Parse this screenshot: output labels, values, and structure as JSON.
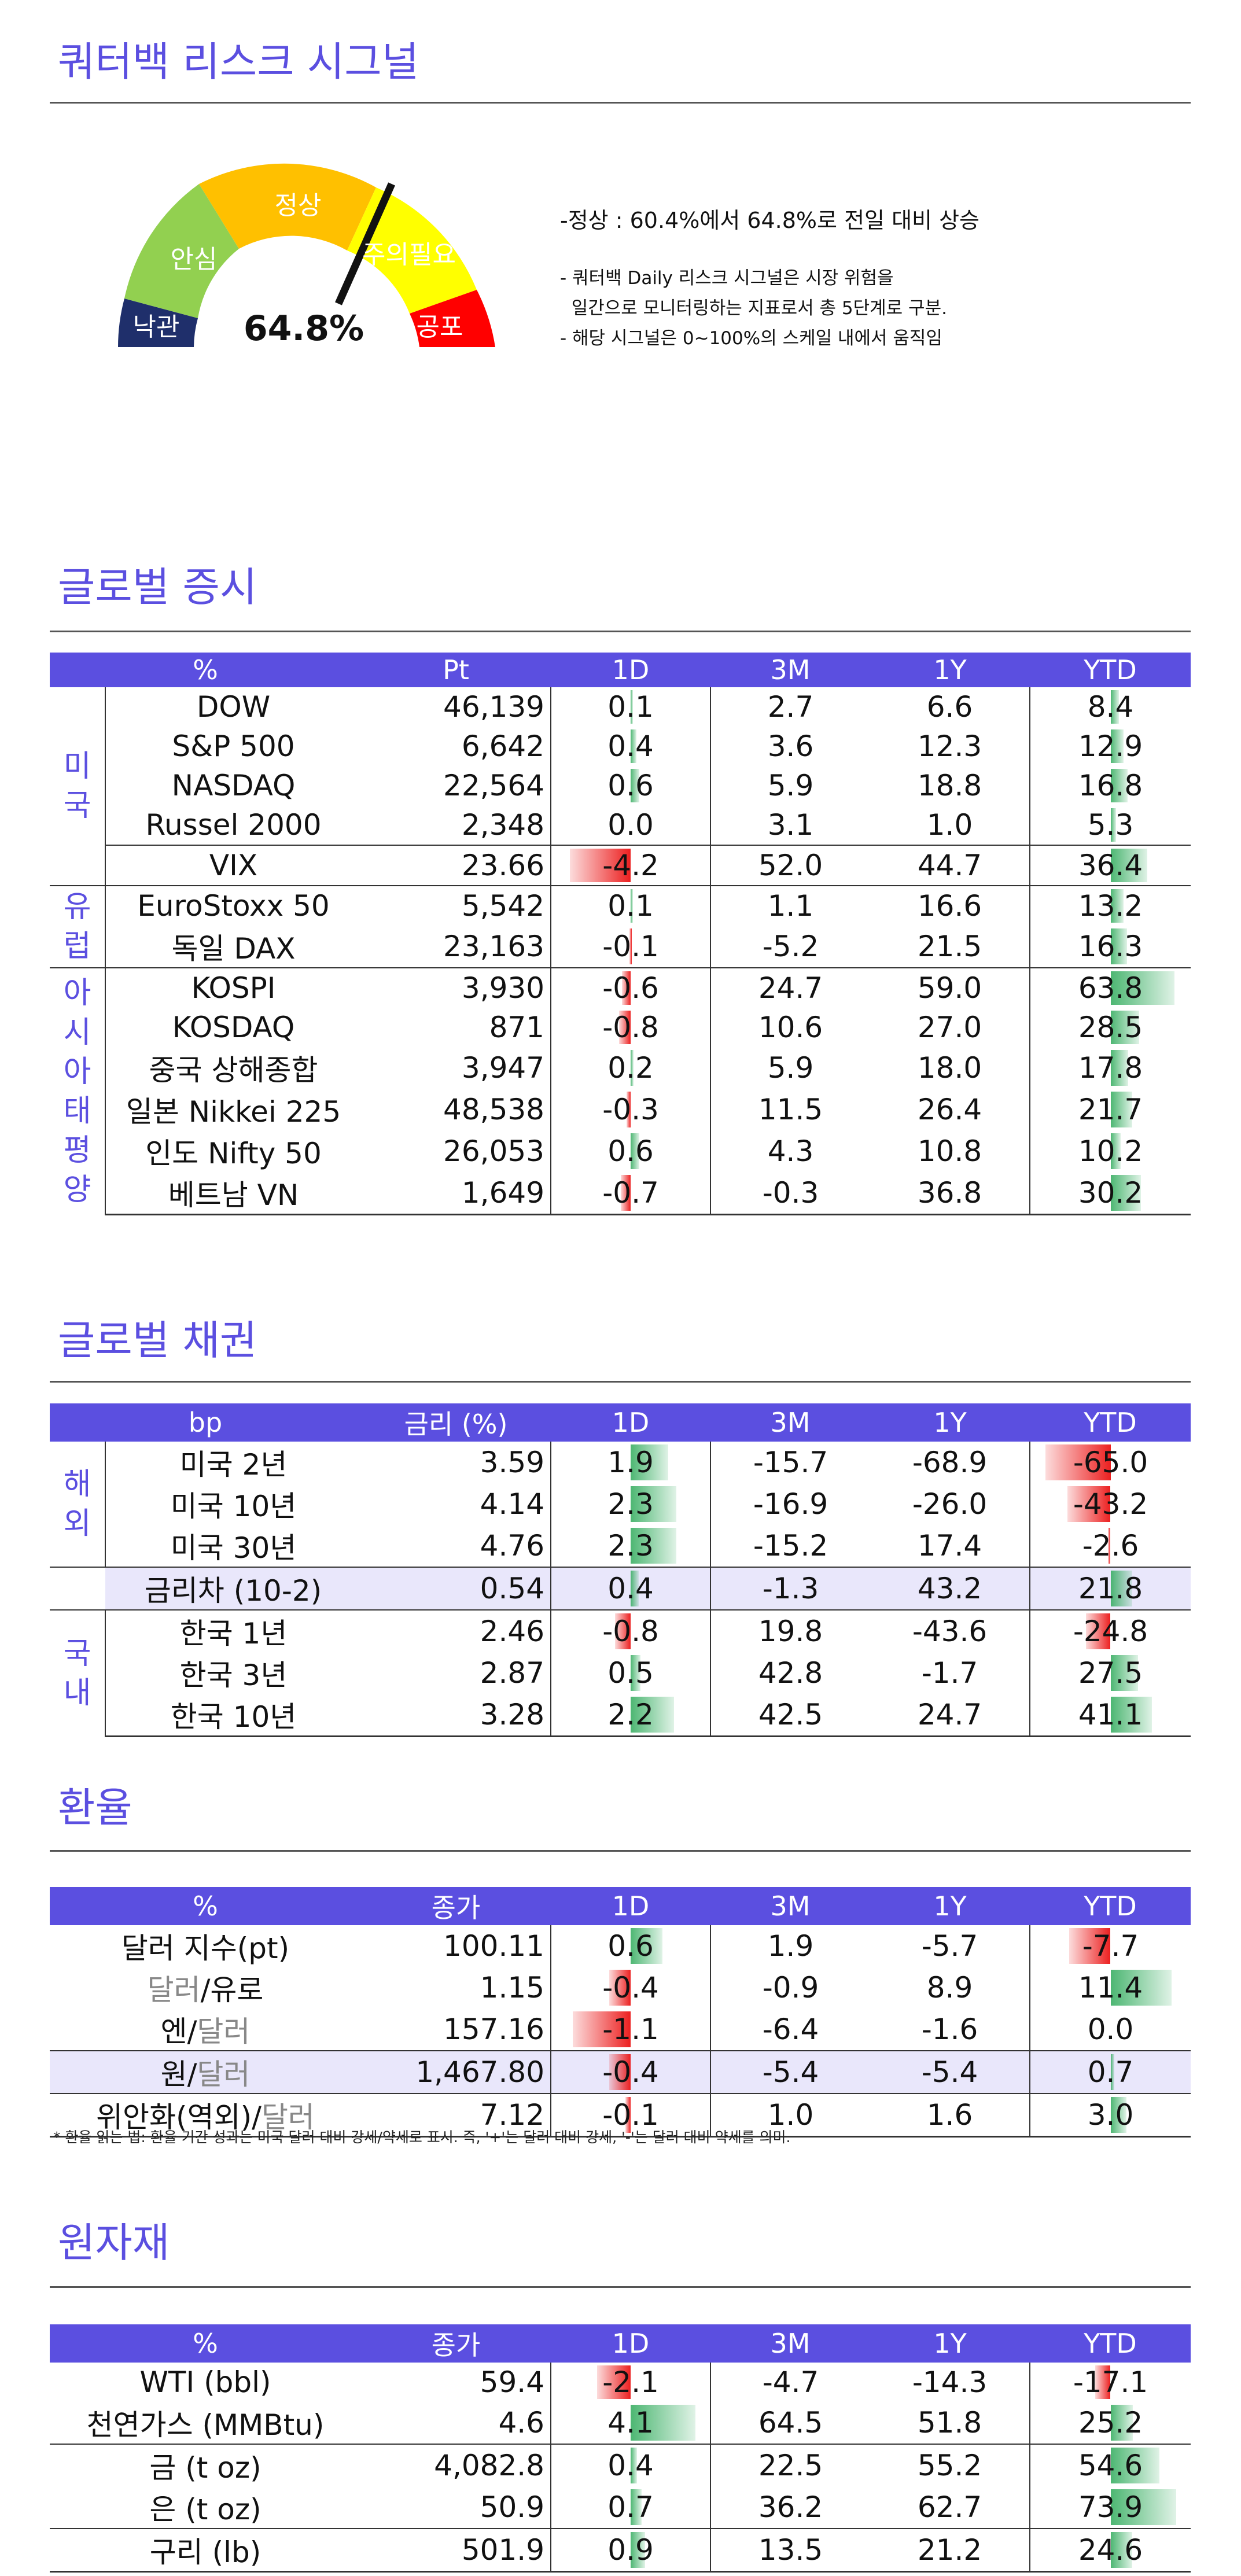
{
  "header": {
    "title": "쿼터백 리스크 시그널"
  },
  "gauge": {
    "labels": [
      "낙관",
      "안심",
      "정상",
      "주의필요",
      "공포"
    ],
    "value": "64.8%",
    "level": 0.648,
    "colors": [
      "#1f2f6b",
      "#92d050",
      "#ffc000",
      "#ffff00",
      "#ff0000"
    ],
    "main_text": "-정상 : 60.4%에서 64.8%로 전일 대비 상승",
    "notes": [
      "- 쿼터백 Daily 리스크 시그널은 시장 위험을",
      "  일간으로 모니터링하는 지표로서 총 5단계로 구분.",
      "- 해당 시그널은 0~100%의 스케일 내에서 움직임"
    ]
  },
  "equity": {
    "title": "글로벌 증시",
    "headers": [
      "%",
      "Pt",
      "1D",
      "3M",
      "1Y",
      "YTD"
    ],
    "groups": {
      "us": "미국",
      "eu": "유럽",
      "asia": "아시아태평양"
    },
    "rows": [
      {
        "name": "DOW",
        "pt": "46,139",
        "d1": "0.1",
        "m3": "2.7",
        "y1": "6.6",
        "ytd": "8.4"
      },
      {
        "name": "S&P 500",
        "pt": "6,642",
        "d1": "0.4",
        "m3": "3.6",
        "y1": "12.3",
        "ytd": "12.9"
      },
      {
        "name": "NASDAQ",
        "pt": "22,564",
        "d1": "0.6",
        "m3": "5.9",
        "y1": "18.8",
        "ytd": "16.8"
      },
      {
        "name": "Russel 2000",
        "pt": "2,348",
        "d1": "0.0",
        "m3": "3.1",
        "y1": "1.0",
        "ytd": "5.3"
      },
      {
        "name": "VIX",
        "pt": "23.66",
        "d1": "-4.2",
        "m3": "52.0",
        "y1": "44.7",
        "ytd": "36.4"
      },
      {
        "name": "EuroStoxx 50",
        "pt": "5,542",
        "d1": "0.1",
        "m3": "1.1",
        "y1": "16.6",
        "ytd": "13.2"
      },
      {
        "name": "독일 DAX",
        "pt": "23,163",
        "d1": "-0.1",
        "m3": "-5.2",
        "y1": "21.5",
        "ytd": "16.3"
      },
      {
        "name": "KOSPI",
        "pt": "3,930",
        "d1": "-0.6",
        "m3": "24.7",
        "y1": "59.0",
        "ytd": "63.8"
      },
      {
        "name": "KOSDAQ",
        "pt": "871",
        "d1": "-0.8",
        "m3": "10.6",
        "y1": "27.0",
        "ytd": "28.5"
      },
      {
        "name": "중국 상해종합",
        "pt": "3,947",
        "d1": "0.2",
        "m3": "5.9",
        "y1": "18.0",
        "ytd": "17.8"
      },
      {
        "name": "일본 Nikkei 225",
        "pt": "48,538",
        "d1": "-0.3",
        "m3": "11.5",
        "y1": "26.4",
        "ytd": "21.7"
      },
      {
        "name": "인도 Nifty 50",
        "pt": "26,053",
        "d1": "0.6",
        "m3": "4.3",
        "y1": "10.8",
        "ytd": "10.2"
      },
      {
        "name": "베트남 VN",
        "pt": "1,649",
        "d1": "-0.7",
        "m3": "-0.3",
        "y1": "36.8",
        "ytd": "30.2"
      }
    ]
  },
  "bonds": {
    "title": "글로벌 채권",
    "headers": [
      "bp",
      "금리 (%)",
      "1D",
      "3M",
      "1Y",
      "YTD"
    ],
    "groups": {
      "abroad": "해외",
      "domestic": "국내"
    },
    "rows": [
      {
        "name": "미국 2년",
        "rate": "3.59",
        "d1": "1.9",
        "m3": "-15.7",
        "y1": "-68.9",
        "ytd": "-65.0"
      },
      {
        "name": "미국 10년",
        "rate": "4.14",
        "d1": "2.3",
        "m3": "-16.9",
        "y1": "-26.0",
        "ytd": "-43.2"
      },
      {
        "name": "미국 30년",
        "rate": "4.76",
        "d1": "2.3",
        "m3": "-15.2",
        "y1": "17.4",
        "ytd": "-2.6"
      },
      {
        "name": "금리차 (10-2)",
        "rate": "0.54",
        "d1": "0.4",
        "m3": "-1.3",
        "y1": "43.2",
        "ytd": "21.8"
      },
      {
        "name": "한국 1년",
        "rate": "2.46",
        "d1": "-0.8",
        "m3": "19.8",
        "y1": "-43.6",
        "ytd": "-24.8"
      },
      {
        "name": "한국 3년",
        "rate": "2.87",
        "d1": "0.5",
        "m3": "42.8",
        "y1": "-1.7",
        "ytd": "27.5"
      },
      {
        "name": "한국 10년",
        "rate": "3.28",
        "d1": "2.2",
        "m3": "42.5",
        "y1": "24.7",
        "ytd": "41.1"
      }
    ]
  },
  "fx": {
    "title": "환율",
    "headers": [
      "%",
      "종가",
      "1D",
      "3M",
      "1Y",
      "YTD"
    ],
    "rows": [
      {
        "a": "달러 지수(pt)",
        "sep": "",
        "b": "",
        "close": "100.11",
        "d1": "0.6",
        "m3": "1.9",
        "y1": "-5.7",
        "ytd": "-7.7"
      },
      {
        "a": "달러",
        "sep": "/",
        "b": "유로",
        "close": "1.15",
        "d1": "-0.4",
        "m3": "-0.9",
        "y1": "8.9",
        "ytd": "11.4"
      },
      {
        "a": "엔",
        "sep": "/",
        "b": "달러",
        "close": "157.16",
        "d1": "-1.1",
        "m3": "-6.4",
        "y1": "-1.6",
        "ytd": "0.0"
      },
      {
        "a": "원",
        "sep": "/",
        "b": "달러",
        "close": "1,467.80",
        "d1": "-0.4",
        "m3": "-5.4",
        "y1": "-5.4",
        "ytd": "0.7"
      },
      {
        "a": "위안화(역외)",
        "sep": "/",
        "b": "달러",
        "close": "7.12",
        "d1": "-0.1",
        "m3": "1.0",
        "y1": "1.6",
        "ytd": "3.0"
      }
    ],
    "note": "* 환율 읽는 법: 환율 기간 성과는 미국 달러 대비 강세/약세로 표시. 즉, '+'는 달러 대비 강세, '-'는 달러 대비 약세를 의미."
  },
  "commodities": {
    "title": "원자재",
    "headers": [
      "%",
      "종가",
      "1D",
      "3M",
      "1Y",
      "YTD"
    ],
    "rows": [
      {
        "name": "WTI (bbl)",
        "close": "59.4",
        "d1": "-2.1",
        "m3": "-4.7",
        "y1": "-14.3",
        "ytd": "-17.1"
      },
      {
        "name": "천연가스 (MMBtu)",
        "close": "4.6",
        "d1": "4.1",
        "m3": "64.5",
        "y1": "51.8",
        "ytd": "25.2"
      },
      {
        "name": "금 (t oz)",
        "close": "4,082.8",
        "d1": "0.4",
        "m3": "22.5",
        "y1": "55.2",
        "ytd": "54.6"
      },
      {
        "name": "은 (t oz)",
        "close": "50.9",
        "d1": "0.7",
        "m3": "36.2",
        "y1": "62.7",
        "ytd": "73.9"
      },
      {
        "name": "구리 (lb)",
        "close": "501.9",
        "d1": "0.9",
        "m3": "13.5",
        "y1": "21.2",
        "ytd": "24.6"
      }
    ]
  }
}
